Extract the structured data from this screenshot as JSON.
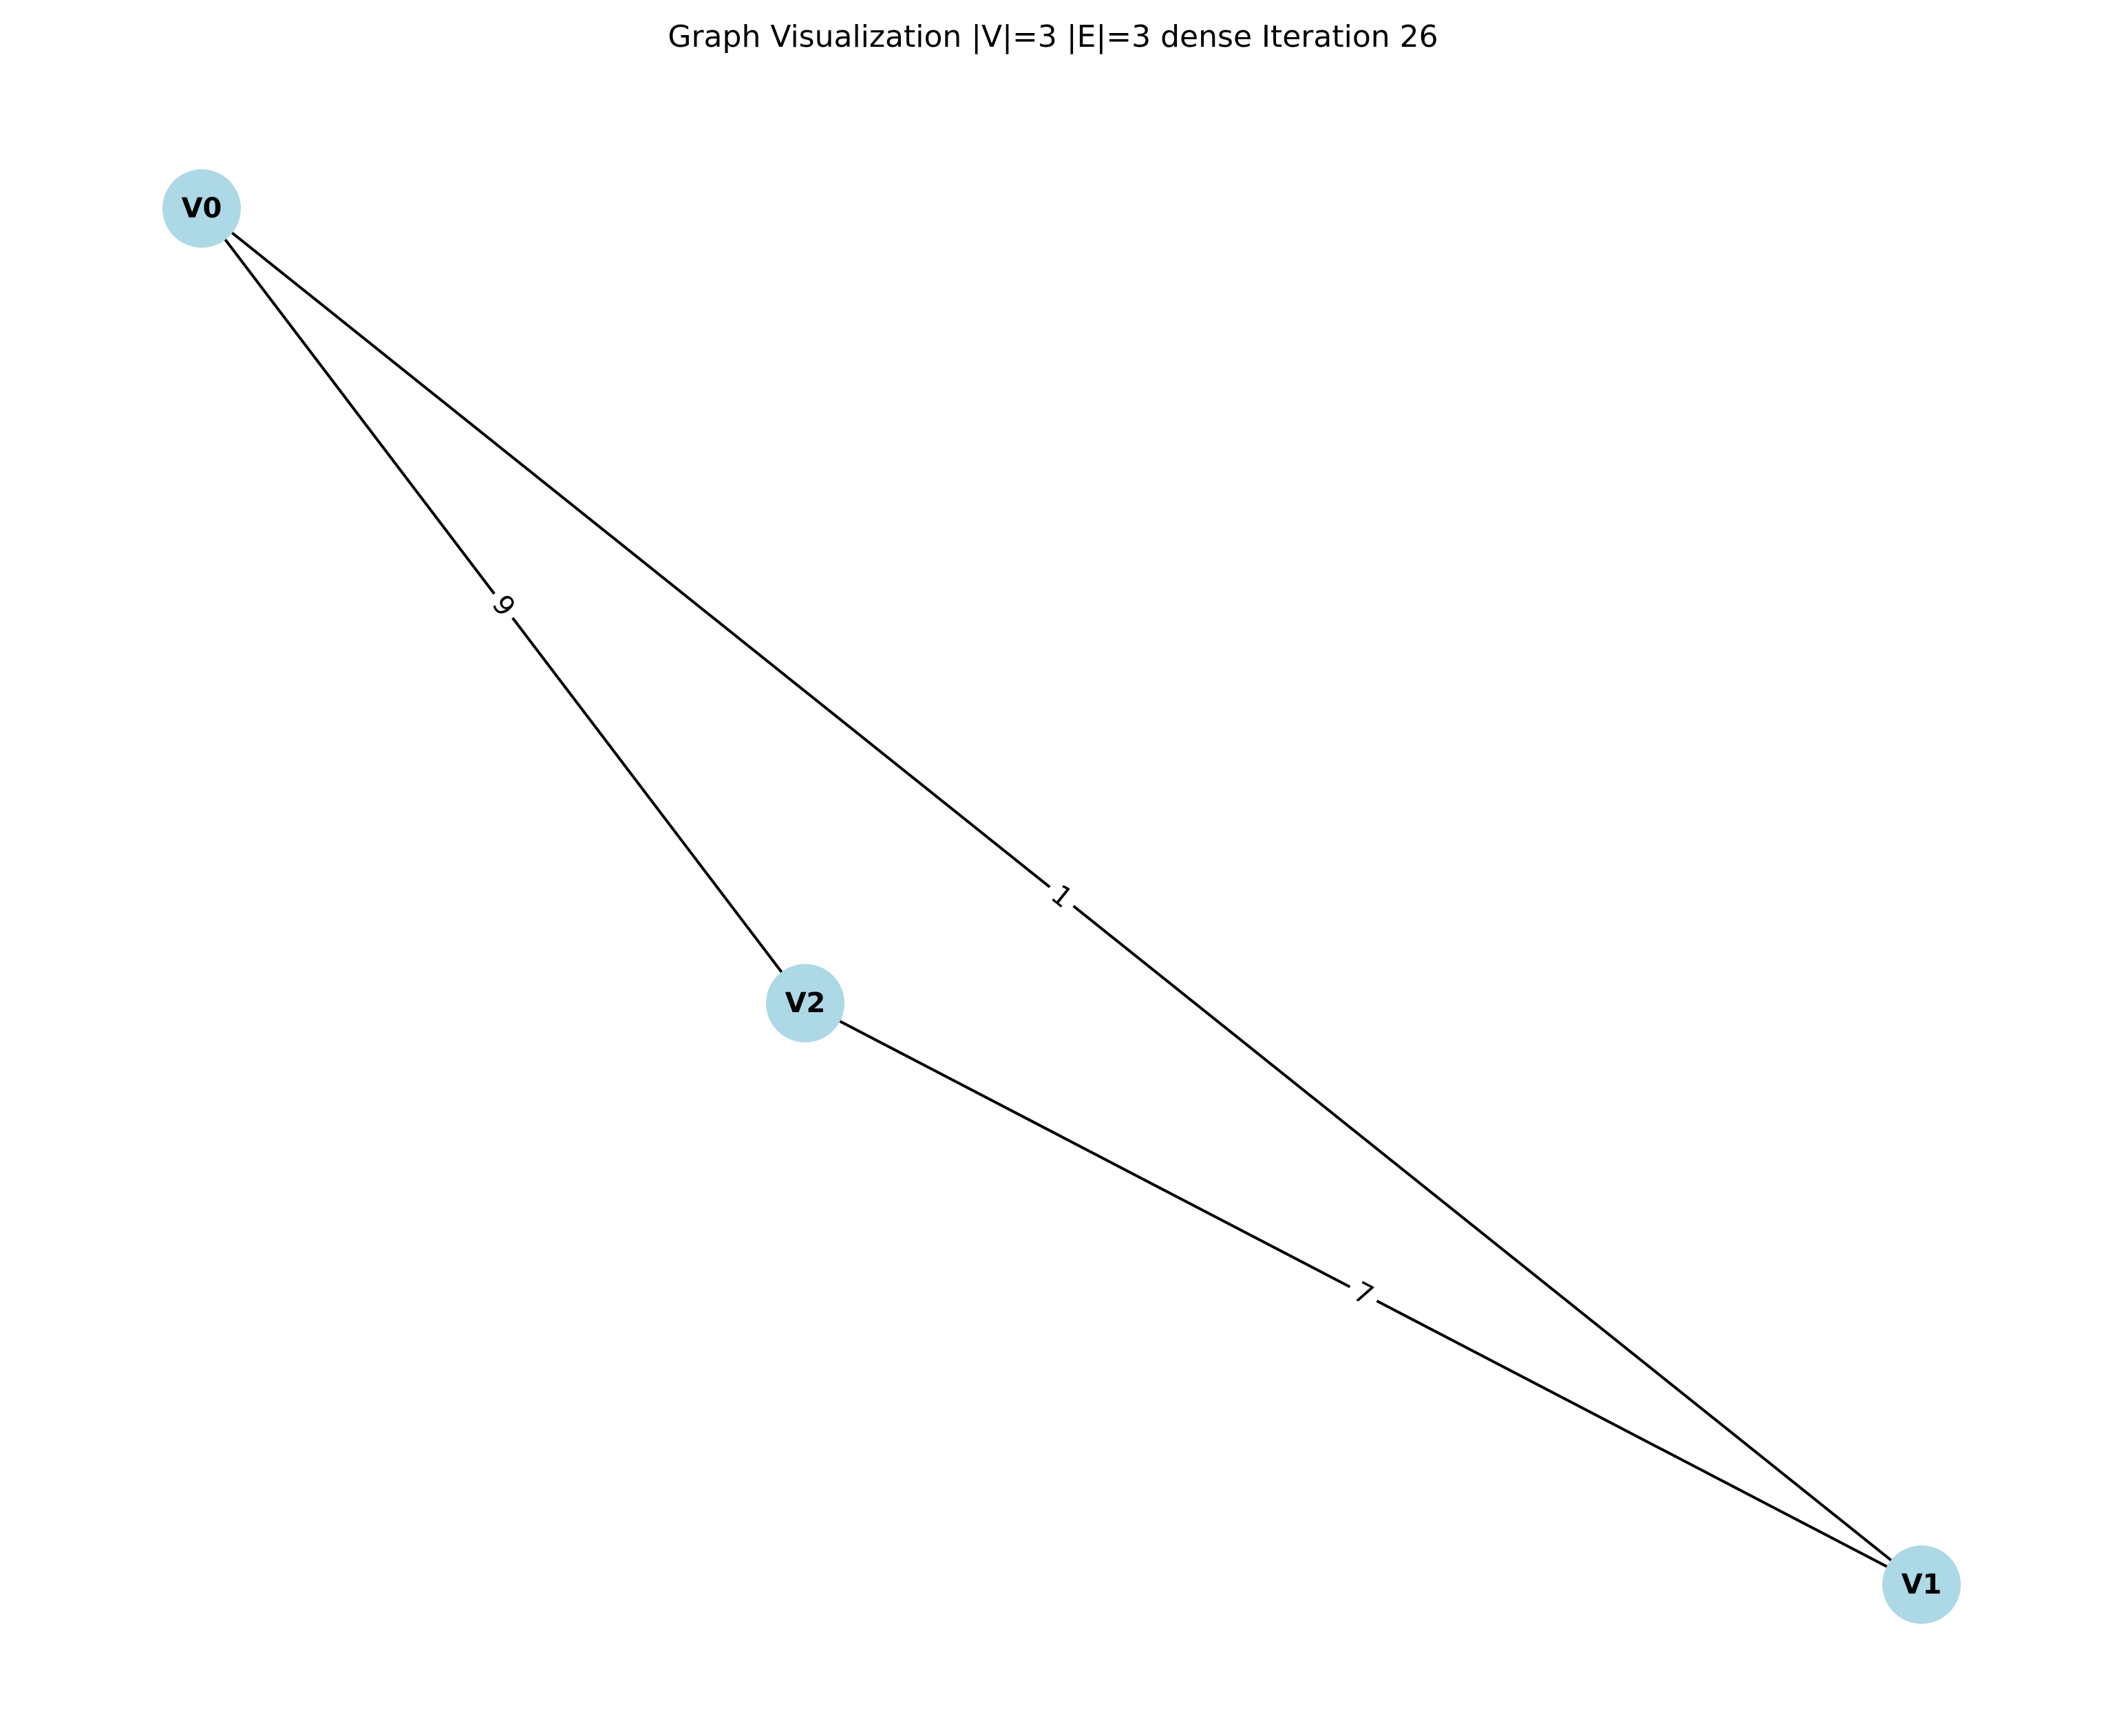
{
  "title": "Graph Visualization |V|=3 |E|=3 dense Iteration 26",
  "colors": {
    "node_fill": "#add8e6",
    "edge": "#000000",
    "text": "#000000",
    "background": "#ffffff"
  },
  "graph": {
    "nodes": [
      {
        "id": "V0",
        "label": "V0"
      },
      {
        "id": "V1",
        "label": "V1"
      },
      {
        "id": "V2",
        "label": "V2"
      }
    ],
    "edges": [
      {
        "source": "V0",
        "target": "V1",
        "weight": "1"
      },
      {
        "source": "V0",
        "target": "V2",
        "weight": "9"
      },
      {
        "source": "V2",
        "target": "V1",
        "weight": "7"
      }
    ]
  }
}
